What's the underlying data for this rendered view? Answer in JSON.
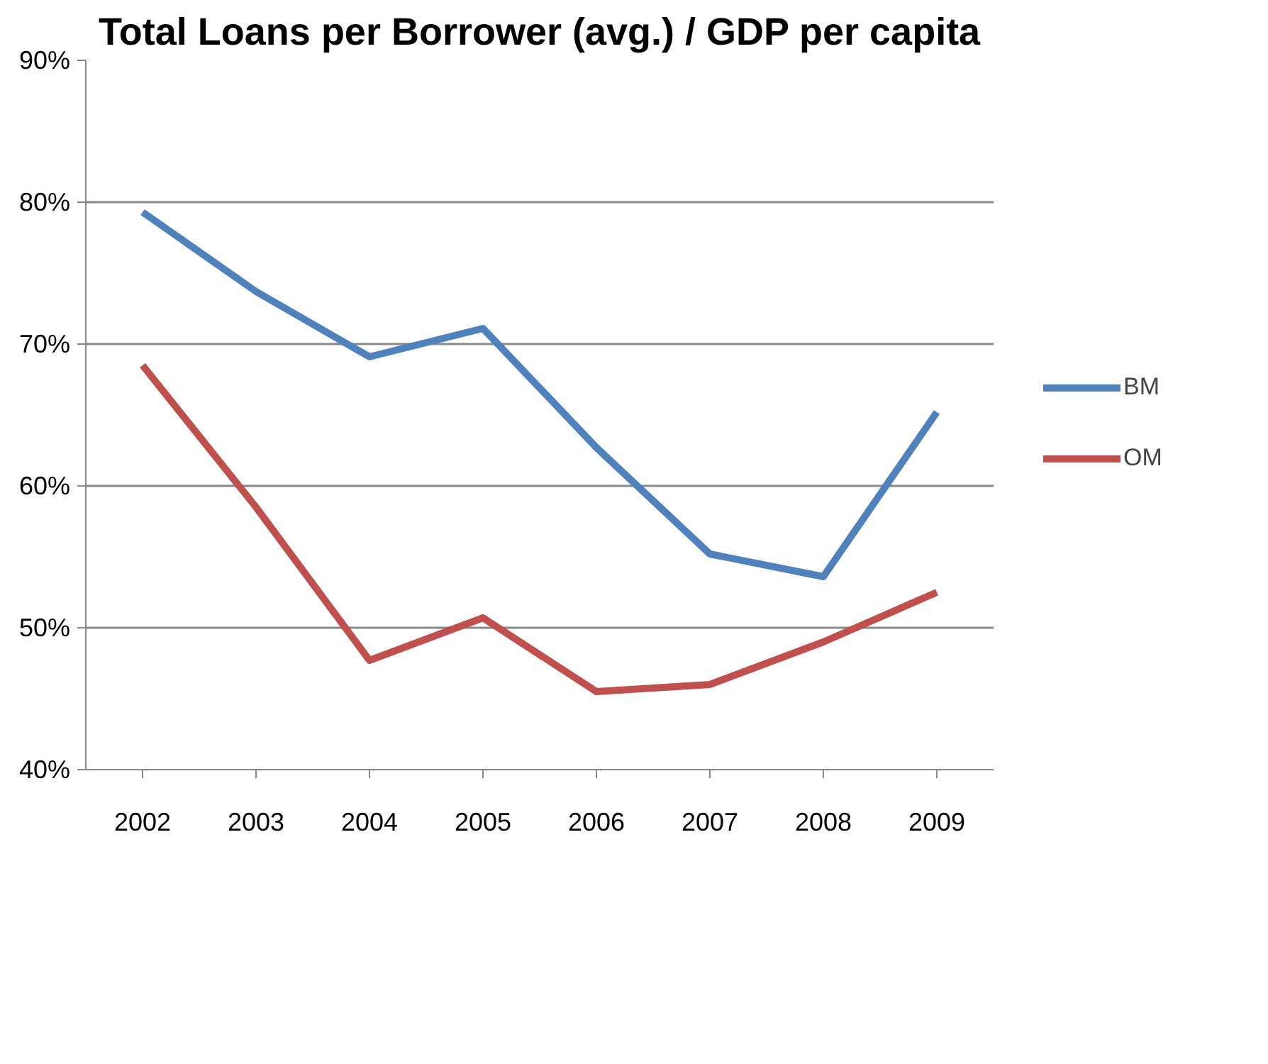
{
  "chart_data": {
    "type": "line",
    "title": "Total Loans per Borrower (avg.) / GDP per capita",
    "categories": [
      "2002",
      "2003",
      "2004",
      "2005",
      "2006",
      "2007",
      "2008",
      "2009"
    ],
    "series": [
      {
        "name": "BM",
        "color": "#4f81bd",
        "values": [
          79.3,
          73.7,
          69.1,
          71.1,
          62.7,
          55.2,
          53.6,
          65.2
        ]
      },
      {
        "name": "OM",
        "color": "#c0504d",
        "values": [
          68.5,
          58.5,
          47.7,
          50.7,
          45.5,
          46.0,
          49.0,
          52.5
        ]
      }
    ],
    "ylim": [
      40,
      90
    ],
    "yticks": [
      {
        "value": 40,
        "label": "40%"
      },
      {
        "value": 50,
        "label": "50%"
      },
      {
        "value": 60,
        "label": "60%"
      },
      {
        "value": 70,
        "label": "70%"
      },
      {
        "value": 80,
        "label": "80%"
      },
      {
        "value": 90,
        "label": "90%"
      }
    ],
    "grid": "y",
    "legend": "right",
    "marker": "none",
    "line_style": "solid"
  }
}
